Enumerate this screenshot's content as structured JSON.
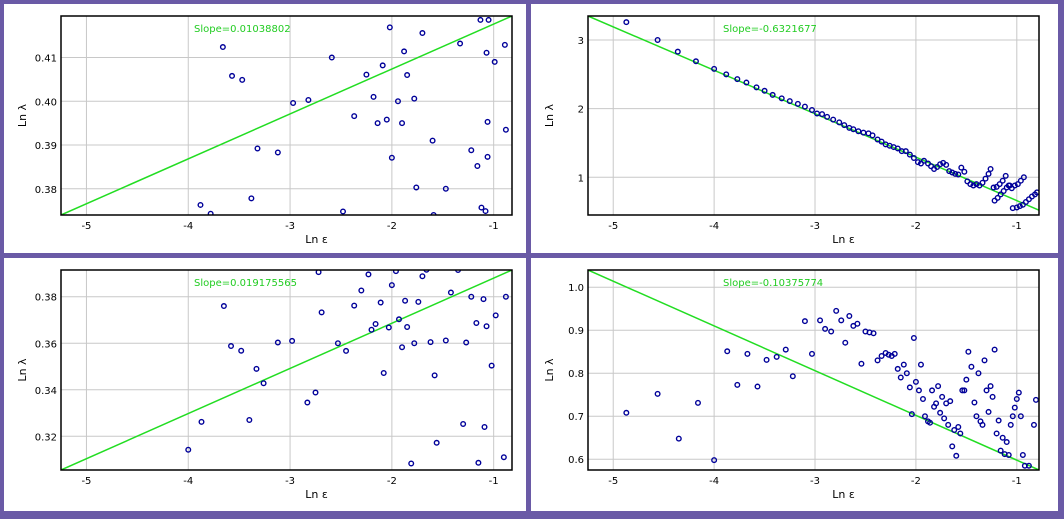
{
  "colors": {
    "frame": "#6a5aa6",
    "grid": "#c8c8c8",
    "fit_line": "#22dd22",
    "point": "#000099",
    "slope_text": "#22cc22"
  },
  "chart_data": [
    {
      "type": "scatter",
      "slope_label": "Slope=0.01038802",
      "xlabel": "Ln ε",
      "ylabel": "Ln λ",
      "xlim": [
        -5.25,
        -0.82
      ],
      "ylim": [
        0.374,
        0.4195
      ],
      "xticks": [
        -5,
        -4,
        -3,
        -2,
        -1
      ],
      "xtick_labels": [
        "-5",
        "-4",
        "-3",
        "-2",
        "-1"
      ],
      "yticks": [
        0.38,
        0.39,
        0.4,
        0.41
      ],
      "ytick_labels": [
        "0.38",
        "0.39",
        "0.40",
        "0.41"
      ],
      "grid": true,
      "fit_line": {
        "x": [
          -5.25,
          -0.82
        ],
        "y": [
          0.374,
          0.4195
        ]
      },
      "points": [
        [
          -3.88,
          0.3763
        ],
        [
          -3.78,
          0.3743
        ],
        [
          -3.66,
          0.4124
        ],
        [
          -3.57,
          0.4058
        ],
        [
          -3.47,
          0.4049
        ],
        [
          -3.38,
          0.3778
        ],
        [
          -3.32,
          0.3892
        ],
        [
          -3.12,
          0.3883
        ],
        [
          -2.97,
          0.3996
        ],
        [
          -2.82,
          0.4003
        ],
        [
          -2.59,
          0.41
        ],
        [
          -2.48,
          0.3748
        ],
        [
          -2.37,
          0.3966
        ],
        [
          -2.25,
          0.4061
        ],
        [
          -2.18,
          0.401
        ],
        [
          -2.14,
          0.395
        ],
        [
          -2.09,
          0.4082
        ],
        [
          -2.05,
          0.3958
        ],
        [
          -2.02,
          0.4169
        ],
        [
          -2.0,
          0.3871
        ],
        [
          -1.94,
          0.4
        ],
        [
          -1.9,
          0.395
        ],
        [
          -1.88,
          0.4114
        ],
        [
          -1.85,
          0.406
        ],
        [
          -1.78,
          0.4006
        ],
        [
          -1.76,
          0.3803
        ],
        [
          -1.7,
          0.4156
        ],
        [
          -1.6,
          0.391
        ],
        [
          -1.59,
          0.374
        ],
        [
          -1.47,
          0.38
        ],
        [
          -1.33,
          0.4132
        ],
        [
          -1.22,
          0.3888
        ],
        [
          -1.16,
          0.3852
        ],
        [
          -1.13,
          0.4186
        ],
        [
          -1.12,
          0.3757
        ],
        [
          -1.08,
          0.3749
        ],
        [
          -1.07,
          0.4111
        ],
        [
          -1.06,
          0.3873
        ],
        [
          -1.06,
          0.3953
        ],
        [
          -1.05,
          0.4186
        ],
        [
          -0.99,
          0.409
        ],
        [
          -0.89,
          0.4129
        ],
        [
          -0.88,
          0.3935
        ]
      ]
    },
    {
      "type": "scatter",
      "slope_label": "Slope=-0.6321677",
      "xlabel": "Ln ε",
      "ylabel": "Ln λ",
      "xlim": [
        -5.25,
        -0.78
      ],
      "ylim": [
        0.45,
        3.35
      ],
      "xticks": [
        -5,
        -4,
        -3,
        -2,
        -1
      ],
      "xtick_labels": [
        "-5",
        "-4",
        "-3",
        "-2",
        "-1"
      ],
      "yticks": [
        1,
        2,
        3
      ],
      "ytick_labels": [
        "1",
        "2",
        "3"
      ],
      "grid": true,
      "fit_line": {
        "x": [
          -5.25,
          -0.78
        ],
        "y": [
          3.35,
          0.52
        ]
      },
      "points": [
        [
          -4.87,
          3.26
        ],
        [
          -4.56,
          3.0
        ],
        [
          -4.36,
          2.83
        ],
        [
          -4.18,
          2.69
        ],
        [
          -4.0,
          2.58
        ],
        [
          -3.88,
          2.5
        ],
        [
          -3.77,
          2.43
        ],
        [
          -3.68,
          2.38
        ],
        [
          -3.58,
          2.31
        ],
        [
          -3.5,
          2.26
        ],
        [
          -3.42,
          2.2
        ],
        [
          -3.33,
          2.15
        ],
        [
          -3.25,
          2.11
        ],
        [
          -3.17,
          2.07
        ],
        [
          -3.1,
          2.03
        ],
        [
          -3.03,
          1.98
        ],
        [
          -2.98,
          1.93
        ],
        [
          -2.93,
          1.92
        ],
        [
          -2.88,
          1.88
        ],
        [
          -2.82,
          1.84
        ],
        [
          -2.76,
          1.8
        ],
        [
          -2.71,
          1.76
        ],
        [
          -2.66,
          1.72
        ],
        [
          -2.62,
          1.7
        ],
        [
          -2.57,
          1.67
        ],
        [
          -2.52,
          1.65
        ],
        [
          -2.47,
          1.64
        ],
        [
          -2.43,
          1.61
        ],
        [
          -2.38,
          1.55
        ],
        [
          -2.34,
          1.52
        ],
        [
          -2.3,
          1.48
        ],
        [
          -2.26,
          1.46
        ],
        [
          -2.22,
          1.44
        ],
        [
          -2.18,
          1.42
        ],
        [
          -2.14,
          1.38
        ],
        [
          -2.1,
          1.38
        ],
        [
          -2.06,
          1.33
        ],
        [
          -2.02,
          1.28
        ],
        [
          -1.98,
          1.22
        ],
        [
          -1.95,
          1.2
        ],
        [
          -1.92,
          1.24
        ],
        [
          -1.88,
          1.2
        ],
        [
          -1.85,
          1.16
        ],
        [
          -1.82,
          1.12
        ],
        [
          -1.79,
          1.15
        ],
        [
          -1.76,
          1.19
        ],
        [
          -1.73,
          1.21
        ],
        [
          -1.7,
          1.18
        ],
        [
          -1.67,
          1.09
        ],
        [
          -1.64,
          1.07
        ],
        [
          -1.61,
          1.05
        ],
        [
          -1.58,
          1.04
        ],
        [
          -1.55,
          1.14
        ],
        [
          -1.52,
          1.08
        ],
        [
          -1.49,
          0.94
        ],
        [
          -1.46,
          0.9
        ],
        [
          -1.43,
          0.88
        ],
        [
          -1.4,
          0.9
        ],
        [
          -1.37,
          0.88
        ],
        [
          -1.34,
          0.92
        ],
        [
          -1.31,
          0.98
        ],
        [
          -1.28,
          1.05
        ],
        [
          -1.26,
          1.12
        ],
        [
          -1.23,
          0.85
        ],
        [
          -1.2,
          0.86
        ],
        [
          -1.17,
          0.9
        ],
        [
          -1.14,
          0.95
        ],
        [
          -1.11,
          1.02
        ],
        [
          -1.08,
          0.88
        ],
        [
          -1.05,
          0.84
        ],
        [
          -1.02,
          0.88
        ],
        [
          -0.99,
          0.9
        ],
        [
          -0.96,
          0.95
        ],
        [
          -0.93,
          1.0
        ],
        [
          -1.22,
          0.66
        ],
        [
          -1.19,
          0.7
        ],
        [
          -1.16,
          0.75
        ],
        [
          -1.13,
          0.8
        ],
        [
          -1.1,
          0.85
        ],
        [
          -1.07,
          0.88
        ],
        [
          -1.04,
          0.55
        ],
        [
          -1.0,
          0.56
        ],
        [
          -0.97,
          0.58
        ],
        [
          -0.94,
          0.6
        ],
        [
          -0.91,
          0.64
        ],
        [
          -0.88,
          0.68
        ],
        [
          -0.85,
          0.72
        ],
        [
          -0.82,
          0.75
        ],
        [
          -0.8,
          0.78
        ]
      ]
    },
    {
      "type": "scatter",
      "slope_label": "Slope=0.019175565",
      "xlabel": "Ln ε",
      "ylabel": "Ln λ",
      "xlim": [
        -5.25,
        -0.82
      ],
      "ylim": [
        0.3055,
        0.3915
      ],
      "xticks": [
        -5,
        -4,
        -3,
        -2,
        -1
      ],
      "xtick_labels": [
        "-5",
        "-4",
        "-3",
        "-2",
        "-1"
      ],
      "yticks": [
        0.32,
        0.34,
        0.36,
        0.38
      ],
      "ytick_labels": [
        "0.32",
        "0.34",
        "0.36",
        "0.38"
      ],
      "grid": true,
      "fit_line": {
        "x": [
          -5.25,
          -0.82
        ],
        "y": [
          0.3055,
          0.3915
        ]
      },
      "points": [
        [
          -4.0,
          0.3142
        ],
        [
          -3.87,
          0.3262
        ],
        [
          -3.65,
          0.376
        ],
        [
          -3.58,
          0.3588
        ],
        [
          -3.48,
          0.3568
        ],
        [
          -3.4,
          0.327
        ],
        [
          -3.33,
          0.349
        ],
        [
          -3.26,
          0.3428
        ],
        [
          -3.12,
          0.3603
        ],
        [
          -2.98,
          0.361
        ],
        [
          -2.83,
          0.3345
        ],
        [
          -2.75,
          0.3388
        ],
        [
          -2.72,
          0.3906
        ],
        [
          -2.69,
          0.3733
        ],
        [
          -2.53,
          0.36
        ],
        [
          -2.45,
          0.3567
        ],
        [
          -2.37,
          0.3762
        ],
        [
          -2.3,
          0.3827
        ],
        [
          -2.23,
          0.3896
        ],
        [
          -2.2,
          0.3658
        ],
        [
          -2.16,
          0.3683
        ],
        [
          -2.11,
          0.3775
        ],
        [
          -2.08,
          0.3472
        ],
        [
          -2.03,
          0.3668
        ],
        [
          -2.0,
          0.385
        ],
        [
          -1.96,
          0.391
        ],
        [
          -1.93,
          0.3703
        ],
        [
          -1.9,
          0.3583
        ],
        [
          -1.87,
          0.3783
        ],
        [
          -1.85,
          0.367
        ],
        [
          -1.81,
          0.3083
        ],
        [
          -1.78,
          0.36
        ],
        [
          -1.74,
          0.3778
        ],
        [
          -1.7,
          0.3888
        ],
        [
          -1.66,
          0.3916
        ],
        [
          -1.62,
          0.3605
        ],
        [
          -1.58,
          0.3462
        ],
        [
          -1.56,
          0.3172
        ],
        [
          -1.47,
          0.3612
        ],
        [
          -1.42,
          0.3818
        ],
        [
          -1.35,
          0.3915
        ],
        [
          -1.3,
          0.3253
        ],
        [
          -1.27,
          0.3603
        ],
        [
          -1.22,
          0.38
        ],
        [
          -1.17,
          0.3687
        ],
        [
          -1.15,
          0.3086
        ],
        [
          -1.1,
          0.379
        ],
        [
          -1.09,
          0.324
        ],
        [
          -1.07,
          0.3673
        ],
        [
          -1.02,
          0.3504
        ],
        [
          -0.98,
          0.372
        ],
        [
          -0.9,
          0.311
        ],
        [
          -0.88,
          0.38
        ]
      ]
    },
    {
      "type": "scatter",
      "slope_label": "Slope=-0.10375774",
      "xlabel": "Ln ε",
      "ylabel": "Ln λ",
      "xlim": [
        -5.25,
        -0.78
      ],
      "ylim": [
        0.575,
        1.04
      ],
      "xticks": [
        -5,
        -4,
        -3,
        -2,
        -1
      ],
      "xtick_labels": [
        "-5",
        "-4",
        "-3",
        "-2",
        "-1"
      ],
      "yticks": [
        0.6,
        0.7,
        0.8,
        0.9,
        1.0
      ],
      "ytick_labels": [
        "0.6",
        "0.7",
        "0.8",
        "0.9",
        "1.0"
      ],
      "grid": true,
      "fit_line": {
        "x": [
          -5.25,
          -0.78
        ],
        "y": [
          1.04,
          0.575
        ]
      },
      "points": [
        [
          -4.87,
          0.708
        ],
        [
          -4.56,
          0.752
        ],
        [
          -4.35,
          0.648
        ],
        [
          -4.16,
          0.731
        ],
        [
          -4.0,
          0.598
        ],
        [
          -3.87,
          0.851
        ],
        [
          -3.77,
          0.773
        ],
        [
          -3.67,
          0.845
        ],
        [
          -3.57,
          0.769
        ],
        [
          -3.48,
          0.831
        ],
        [
          -3.38,
          0.838
        ],
        [
          -3.29,
          0.855
        ],
        [
          -3.22,
          0.793
        ],
        [
          -3.1,
          0.921
        ],
        [
          -3.03,
          0.845
        ],
        [
          -2.95,
          0.923
        ],
        [
          -2.9,
          0.903
        ],
        [
          -2.84,
          0.897
        ],
        [
          -2.79,
          0.945
        ],
        [
          -2.74,
          0.923
        ],
        [
          -2.7,
          0.871
        ],
        [
          -2.66,
          0.933
        ],
        [
          -2.62,
          0.91
        ],
        [
          -2.58,
          0.915
        ],
        [
          -2.54,
          0.822
        ],
        [
          -2.5,
          0.897
        ],
        [
          -2.46,
          0.895
        ],
        [
          -2.42,
          0.893
        ],
        [
          -2.38,
          0.83
        ],
        [
          -2.34,
          0.84
        ],
        [
          -2.3,
          0.847
        ],
        [
          -2.27,
          0.843
        ],
        [
          -2.24,
          0.84
        ],
        [
          -2.21,
          0.845
        ],
        [
          -2.18,
          0.81
        ],
        [
          -2.15,
          0.79
        ],
        [
          -2.12,
          0.82
        ],
        [
          -2.09,
          0.8
        ],
        [
          -2.06,
          0.767
        ],
        [
          -2.04,
          0.705
        ],
        [
          -2.02,
          0.882
        ],
        [
          -2.0,
          0.78
        ],
        [
          -1.97,
          0.76
        ],
        [
          -1.95,
          0.82
        ],
        [
          -1.93,
          0.74
        ],
        [
          -1.91,
          0.7
        ],
        [
          -1.88,
          0.688
        ],
        [
          -1.86,
          0.685
        ],
        [
          -1.84,
          0.76
        ],
        [
          -1.82,
          0.722
        ],
        [
          -1.8,
          0.73
        ],
        [
          -1.78,
          0.77
        ],
        [
          -1.76,
          0.708
        ],
        [
          -1.74,
          0.745
        ],
        [
          -1.72,
          0.695
        ],
        [
          -1.7,
          0.73
        ],
        [
          -1.68,
          0.68
        ],
        [
          -1.66,
          0.735
        ],
        [
          -1.64,
          0.63
        ],
        [
          -1.62,
          0.668
        ],
        [
          -1.6,
          0.608
        ],
        [
          -1.58,
          0.675
        ],
        [
          -1.56,
          0.66
        ],
        [
          -1.54,
          0.76
        ],
        [
          -1.52,
          0.76
        ],
        [
          -1.5,
          0.785
        ],
        [
          -1.48,
          0.85
        ],
        [
          -1.45,
          0.815
        ],
        [
          -1.42,
          0.732
        ],
        [
          -1.4,
          0.7
        ],
        [
          -1.38,
          0.8
        ],
        [
          -1.36,
          0.688
        ],
        [
          -1.34,
          0.68
        ],
        [
          -1.32,
          0.83
        ],
        [
          -1.3,
          0.76
        ],
        [
          -1.28,
          0.71
        ],
        [
          -1.26,
          0.77
        ],
        [
          -1.24,
          0.745
        ],
        [
          -1.22,
          0.855
        ],
        [
          -1.2,
          0.66
        ],
        [
          -1.18,
          0.69
        ],
        [
          -1.16,
          0.62
        ],
        [
          -1.14,
          0.65
        ],
        [
          -1.12,
          0.612
        ],
        [
          -1.1,
          0.64
        ],
        [
          -1.08,
          0.61
        ],
        [
          -1.06,
          0.68
        ],
        [
          -1.04,
          0.7
        ],
        [
          -1.02,
          0.72
        ],
        [
          -1.0,
          0.74
        ],
        [
          -0.98,
          0.755
        ],
        [
          -0.96,
          0.7
        ],
        [
          -0.94,
          0.61
        ],
        [
          -0.92,
          0.585
        ],
        [
          -0.88,
          0.585
        ],
        [
          -0.83,
          0.68
        ],
        [
          -0.81,
          0.738
        ]
      ]
    }
  ]
}
